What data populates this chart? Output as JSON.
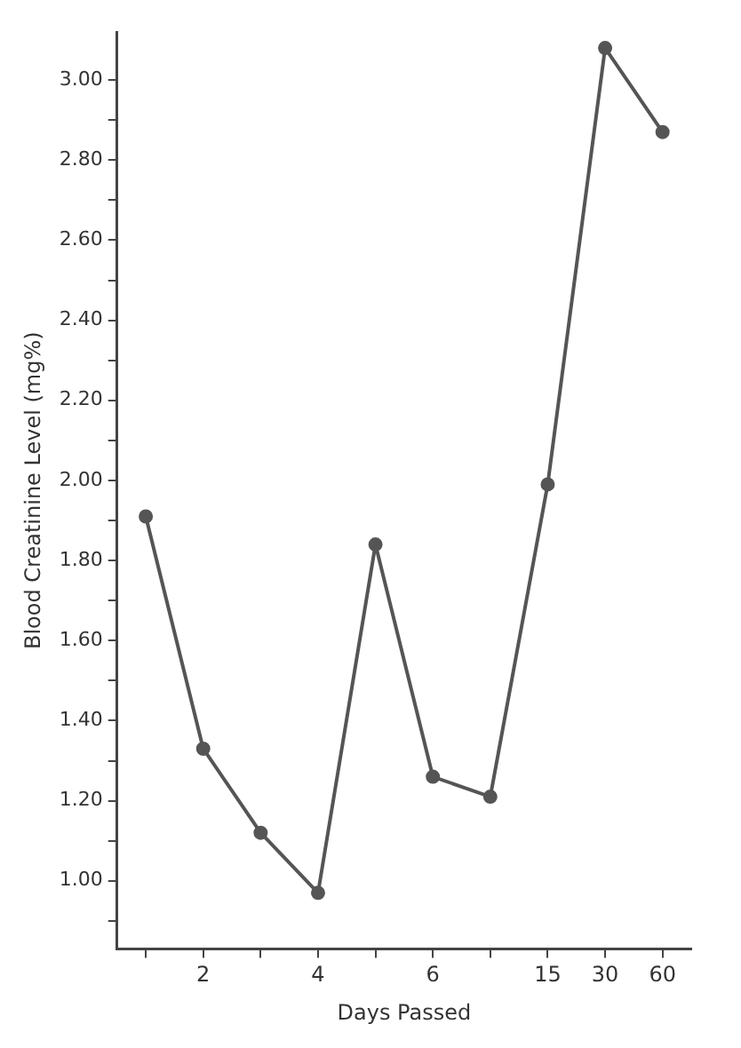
{
  "chart_data": {
    "type": "line",
    "xlabel": "Days Passed",
    "ylabel": "Blood Creatinine Level (mg%)",
    "categories": [
      null,
      "2",
      null,
      "4",
      null,
      "6",
      null,
      "15",
      "30",
      "60"
    ],
    "series": [
      {
        "color": "#555555",
        "values": [
          1.91,
          1.33,
          1.12,
          0.97,
          1.84,
          1.26,
          1.21,
          1.99,
          3.08,
          2.87
        ]
      }
    ],
    "ylim": [
      0.83,
      3.12
    ],
    "yticks": [
      {
        "value": 0.9,
        "label": null
      },
      {
        "value": 1.0,
        "label": "1.00"
      },
      {
        "value": 1.1,
        "label": null
      },
      {
        "value": 1.2,
        "label": "1.20"
      },
      {
        "value": 1.3,
        "label": null
      },
      {
        "value": 1.4,
        "label": "1.40"
      },
      {
        "value": 1.5,
        "label": null
      },
      {
        "value": 1.6,
        "label": "1.60"
      },
      {
        "value": 1.7,
        "label": null
      },
      {
        "value": 1.8,
        "label": "1.80"
      },
      {
        "value": 1.9,
        "label": null
      },
      {
        "value": 2.0,
        "label": "2.00"
      },
      {
        "value": 2.1,
        "label": null
      },
      {
        "value": 2.2,
        "label": "2.20"
      },
      {
        "value": 2.3,
        "label": null
      },
      {
        "value": 2.4,
        "label": "2.40"
      },
      {
        "value": 2.5,
        "label": null
      },
      {
        "value": 2.6,
        "label": "2.60"
      },
      {
        "value": 2.7,
        "label": null
      },
      {
        "value": 2.8,
        "label": "2.80"
      },
      {
        "value": 2.9,
        "label": null
      },
      {
        "value": 3.0,
        "label": "3.00"
      }
    ],
    "grid": false,
    "legend": false,
    "marker": "circle",
    "line_style": "solid"
  }
}
